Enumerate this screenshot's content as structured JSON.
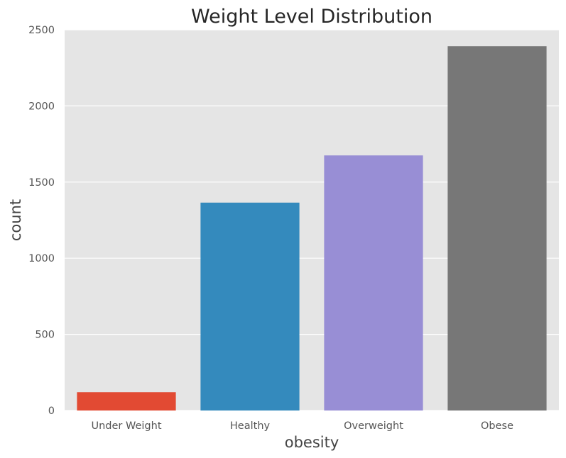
{
  "chart_data": {
    "type": "bar",
    "title": "Weight Level Distribution",
    "xlabel": "obesity",
    "ylabel": "count",
    "categories": [
      "Under Weight",
      "Healthy",
      "Overweight",
      "Obese"
    ],
    "values": [
      120,
      1365,
      1675,
      2392
    ],
    "ylim": [
      0,
      2500
    ],
    "yticks": [
      0,
      500,
      1000,
      1500,
      2000,
      2500
    ],
    "grid": true,
    "legend": "none",
    "colors": [
      "#E24A33",
      "#348ABD",
      "#988ED5",
      "#777777"
    ],
    "background": "#E5E5E5"
  }
}
